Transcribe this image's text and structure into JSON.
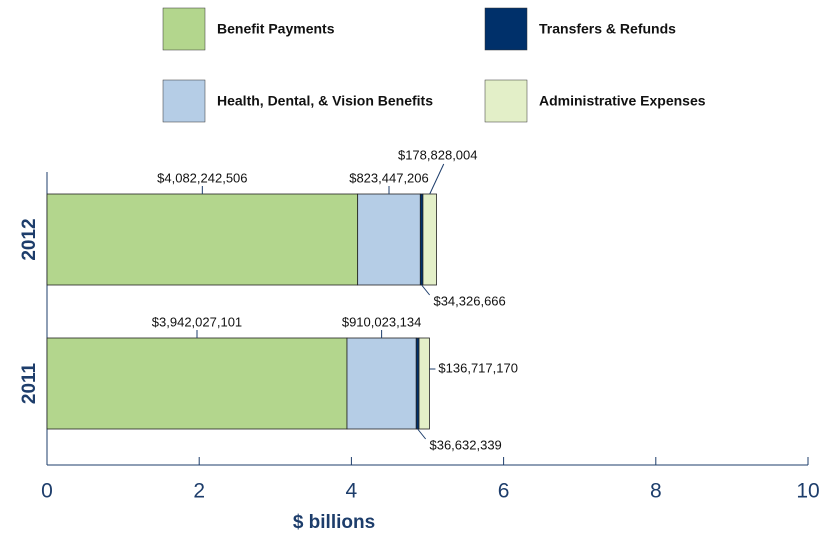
{
  "chart_data": {
    "type": "stacked-barh",
    "xlabel": "$ billions",
    "categories": [
      "2012",
      "2011"
    ],
    "series": [
      {
        "name": "Benefit Payments",
        "color": "#b3d68d",
        "values": [
          4.082242506,
          3.942027101
        ],
        "value_labels": [
          "$4,082,242,506",
          "$3,942,027,101"
        ]
      },
      {
        "name": "Health, Dental, & Vision Benefits",
        "color": "#b5cde6",
        "values": [
          0.823447206,
          0.910023134
        ],
        "value_labels": [
          "$823,447,206",
          "$910,023,134"
        ]
      },
      {
        "name": "Transfers & Refunds",
        "color": "#00306a",
        "values": [
          0.034326666,
          0.036632339
        ],
        "value_labels": [
          "$34,326,666",
          "$36,632,339"
        ]
      },
      {
        "name": "Administrative Expenses",
        "color": "#e3efc8",
        "values": [
          0.178828004,
          0.13671717
        ],
        "value_labels": [
          "$178,828,004",
          "$136,717,170"
        ]
      }
    ],
    "xlim": [
      0,
      10
    ],
    "xticks": [
      0,
      2,
      4,
      6,
      8,
      10
    ]
  }
}
